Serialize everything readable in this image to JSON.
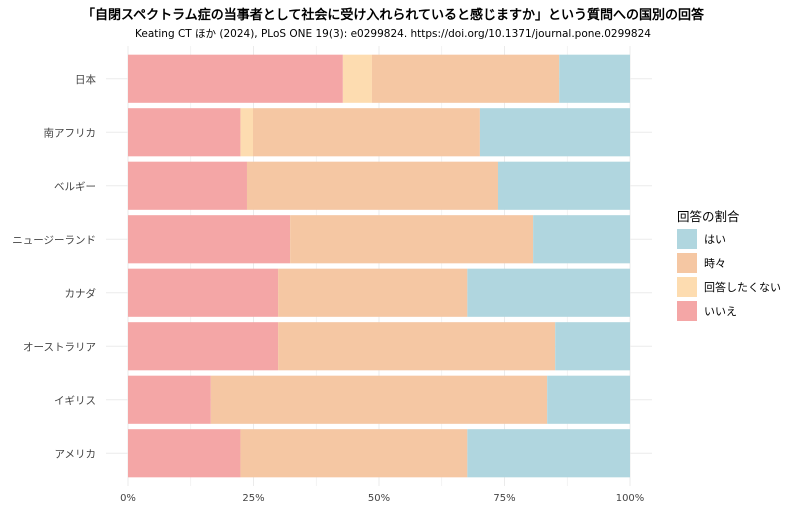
{
  "chart_data": {
    "type": "bar",
    "orientation": "horizontal",
    "stacked": "percent",
    "title": "「自閉スペクトラム症の当事者として社会に受け入れられていると感じますか」という質問への国別の回答",
    "subtitle": "Keating CT ほか (2024), PLoS ONE 19(3): e0299824. https://doi.org/10.1371/journal.pone.0299824",
    "xlabel": "",
    "ylabel": "",
    "xlim": [
      0,
      100
    ],
    "x_ticks": [
      "0%",
      "25%",
      "50%",
      "75%",
      "100%"
    ],
    "grid": true,
    "legend_title": "回答の割合",
    "legend_position": "right",
    "categories": [
      "日本",
      "南アフリカ",
      "ベルギー",
      "ニュージーランド",
      "カナダ",
      "オーストラリア",
      "イギリス",
      "アメリカ"
    ],
    "series": [
      {
        "name": "いいえ",
        "color": "#F4A6A6",
        "values": [
          42.8,
          22.4,
          23.7,
          32.3,
          29.9,
          29.9,
          16.5,
          22.4
        ]
      },
      {
        "name": "回答したくない",
        "color": "#FDDCB0",
        "values": [
          5.8,
          2.5,
          0,
          0,
          0,
          0,
          0,
          0
        ]
      },
      {
        "name": "時々",
        "color": "#F5C7A3",
        "values": [
          37.3,
          45.2,
          50.0,
          48.4,
          37.7,
          55.2,
          67.0,
          45.2
        ]
      },
      {
        "name": "はい",
        "color": "#B0D6DF",
        "values": [
          14.1,
          29.9,
          26.3,
          19.3,
          32.4,
          14.9,
          16.5,
          32.4
        ]
      }
    ],
    "legend_order": [
      "はい",
      "時々",
      "回答したくない",
      "いいえ"
    ]
  }
}
